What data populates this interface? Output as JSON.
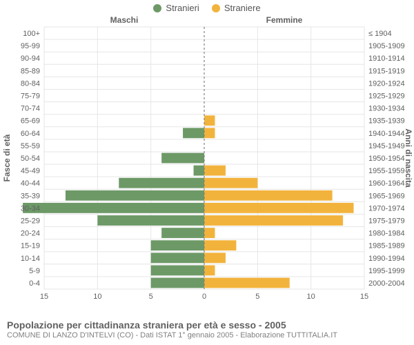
{
  "legend": {
    "male": "Stranieri",
    "female": "Straniere"
  },
  "headers": {
    "male": "Maschi",
    "female": "Femmine"
  },
  "axis_titles": {
    "left": "Fasce di età",
    "right": "Anni di nascita"
  },
  "colors": {
    "male": "#6d9967",
    "female": "#f2b33d",
    "grid": "#e6e6e6",
    "center_line": "#808080",
    "text": "#606060",
    "text_muted": "#808080",
    "background": "#ffffff"
  },
  "fontsize": {
    "tick": 11,
    "axis_title": 12,
    "header": 12,
    "legend": 13,
    "footer_title": 14,
    "footer_src": 11
  },
  "chart": {
    "type": "population-pyramid",
    "x_max": 15,
    "x_ticks": [
      0,
      5,
      10,
      15
    ],
    "age_labels": [
      "0-4",
      "5-9",
      "10-14",
      "15-19",
      "20-24",
      "25-29",
      "30-34",
      "35-39",
      "40-44",
      "45-49",
      "50-54",
      "55-59",
      "60-64",
      "65-69",
      "70-74",
      "75-79",
      "80-84",
      "85-89",
      "90-94",
      "95-99",
      "100+"
    ],
    "year_labels": [
      "2000-2004",
      "1995-1999",
      "1990-1994",
      "1985-1989",
      "1980-1984",
      "1975-1979",
      "1970-1974",
      "1965-1969",
      "1960-1964",
      "1955-1959",
      "1950-1954",
      "1945-1949",
      "1940-1944",
      "1935-1939",
      "1930-1934",
      "1925-1929",
      "1920-1924",
      "1915-1919",
      "1910-1914",
      "1905-1909",
      "≤ 1904"
    ],
    "male": [
      5,
      5,
      5,
      5,
      4,
      10,
      17,
      13,
      8,
      1,
      4,
      0,
      2,
      0,
      0,
      0,
      0,
      0,
      0,
      0,
      0
    ],
    "female": [
      8,
      1,
      2,
      3,
      1,
      13,
      14,
      12,
      5,
      2,
      0,
      0,
      1,
      1,
      0,
      0,
      0,
      0,
      0,
      0,
      0
    ]
  },
  "footer": {
    "title": "Popolazione per cittadinanza straniera per età e sesso - 2005",
    "source": "COMUNE DI LANZO D'INTELVI (CO) - Dati ISTAT 1° gennaio 2005 - Elaborazione TUTTITALIA.IT"
  }
}
